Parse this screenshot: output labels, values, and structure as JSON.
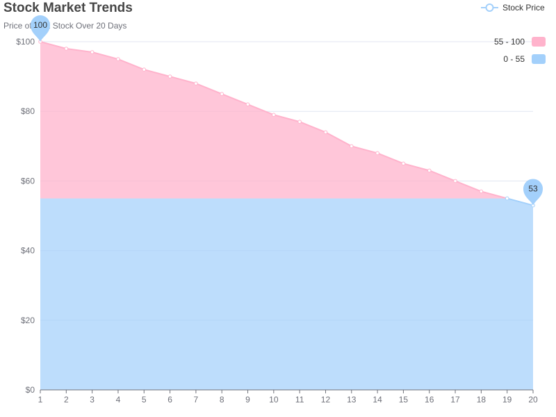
{
  "chart_data": {
    "type": "area",
    "title": "Stock Market Trends",
    "subtitle": "Price of XYZ Stock Over 20 Days",
    "x": [
      1,
      2,
      3,
      4,
      5,
      6,
      7,
      8,
      9,
      10,
      11,
      12,
      13,
      14,
      15,
      16,
      17,
      18,
      19,
      20
    ],
    "series": [
      {
        "name": "Stock Price",
        "values": [
          100,
          98,
          97,
          95,
          92,
          90,
          88,
          85,
          82,
          79,
          77,
          74,
          70,
          68,
          65,
          63,
          60,
          57,
          55,
          53
        ]
      }
    ],
    "ylim": [
      0,
      100
    ],
    "yticks": [
      0,
      20,
      40,
      60,
      80,
      100
    ],
    "ytick_prefix": "$",
    "visual_map": [
      {
        "label": "55 - 100",
        "min": 55,
        "max": 100,
        "color": "#ffb3cc"
      },
      {
        "label": "0 - 55",
        "min": 0,
        "max": 55,
        "color": "#a3d0fb"
      }
    ],
    "mark_points": [
      {
        "label": "100",
        "x": 1,
        "y": 100
      },
      {
        "label": "53",
        "x": 20,
        "y": 53
      }
    ],
    "legend_position": "top-right",
    "grid": true
  }
}
